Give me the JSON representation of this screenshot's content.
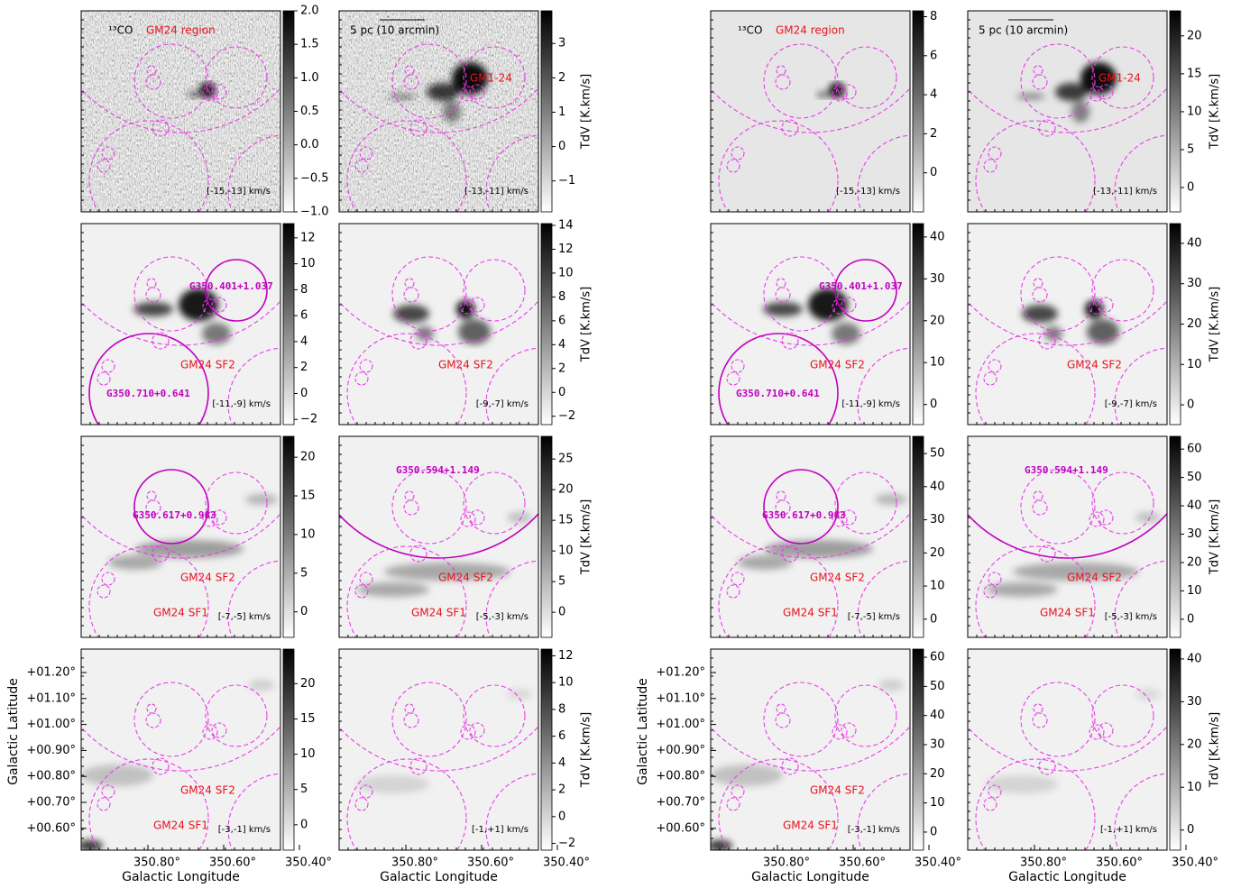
{
  "cbar_label": "TdV [K.km/s]",
  "x_axis_label": "Galactic Longitude",
  "y_axis_label": "Galactic Latitude",
  "x_ticks": [
    "350.80°",
    "350.60°",
    "350.40°"
  ],
  "y_ticks": [
    "+01.20°",
    "+01.10°",
    "+01.00°",
    "+00.90°",
    "+00.80°",
    "+00.70°",
    "+00.60°"
  ],
  "groups": [
    {
      "panels": [
        {
          "velocity": "[-15,-13] km/s",
          "annotations": {
            "co": "¹³CO",
            "region": "GM24 region"
          },
          "colorbar": {
            "lim": [
              -1.0,
              2.0
            ],
            "ticks": [
              {
                "value": -1.0,
                "label": "−1.0"
              },
              {
                "value": -0.5,
                "label": "−0.5"
              },
              {
                "value": 0,
                "label": "0.0"
              },
              0.5,
              {
                "value": 1,
                "label": "1.0"
              },
              1.5,
              {
                "value": 2,
                "label": "2.0"
              }
            ]
          }
        },
        {
          "velocity": "[-13,-11] km/s",
          "annotations": {
            "scale": "5 pc (10 arcmin)",
            "cloud": "GM1-24"
          },
          "colorbar": {
            "lim": [
              -1.9,
              3.95
            ],
            "ticks": [
              {
                "value": -1,
                "label": "−1"
              },
              0,
              1,
              2,
              3
            ]
          }
        },
        {
          "velocity": "[-11,-9] km/s",
          "annotations": {
            "src_top": "G350.401+1.037",
            "sf2": "GM24 SF2",
            "src_bottom": "G350.710+0.641"
          },
          "colorbar": {
            "lim": [
              -2.4,
              13.1
            ],
            "ticks": [
              {
                "value": -2,
                "label": "−2"
              },
              0,
              2,
              4,
              6,
              8,
              10,
              12
            ]
          }
        },
        {
          "velocity": "[-9,-7] km/s",
          "annotations": {
            "sf2": "GM24 SF2"
          },
          "colorbar": {
            "lim": [
              -2.7,
              14.15
            ],
            "ticks": [
              {
                "value": -2,
                "label": "−2"
              },
              0,
              2,
              4,
              6,
              8,
              10,
              12,
              14
            ]
          }
        },
        {
          "velocity": "[-7,-5] km/s",
          "annotations": {
            "src_mid": "G350.617+0.983",
            "sf2": "GM24 SF2",
            "sf1": "GM24 SF1"
          },
          "colorbar": {
            "lim": [
              -3.3,
              22.7
            ],
            "ticks": [
              0,
              5,
              10,
              15,
              20
            ]
          }
        },
        {
          "velocity": "[-5,-3] km/s",
          "annotations": {
            "src_big": "G350.594+1.149",
            "sf2": "GM24 SF2",
            "sf1": "GM24 SF1"
          },
          "colorbar": {
            "lim": [
              -4.1,
              28.7
            ],
            "ticks": [
              0,
              5,
              10,
              15,
              20,
              25
            ]
          }
        },
        {
          "velocity": "[-3,-1] km/s",
          "annotations": {
            "sf2": "GM24 SF2",
            "sf1": "GM24 SF1"
          },
          "colorbar": {
            "lim": [
              -3.6,
              24.9
            ],
            "ticks": [
              0,
              5,
              10,
              15,
              20
            ]
          }
        },
        {
          "velocity": "[-1,+1] km/s",
          "annotations": {},
          "colorbar": {
            "lim": [
              -2.5,
              12.5
            ],
            "ticks": [
              {
                "value": -2,
                "label": "−2"
              },
              0,
              2,
              4,
              6,
              8,
              10,
              12
            ]
          }
        }
      ]
    },
    {
      "panels": [
        {
          "velocity": "[-15,-13] km/s",
          "annotations": {
            "co": "¹³CO",
            "region": "GM24 region"
          },
          "colorbar": {
            "lim": [
              -2.0,
              8.3
            ],
            "ticks": [
              0,
              2,
              4,
              6,
              8
            ]
          }
        },
        {
          "velocity": "[-13,-11] km/s",
          "annotations": {
            "scale": "5 pc (10 arcmin)",
            "cloud": "GM1-24"
          },
          "colorbar": {
            "lim": [
              -3.2,
              23.3
            ],
            "ticks": [
              0,
              5,
              10,
              15,
              20
            ]
          }
        },
        {
          "velocity": "[-11,-9] km/s",
          "annotations": {
            "src_top": "G350.401+1.037",
            "sf2": "GM24 SF2",
            "src_bottom": "G350.710+0.641"
          },
          "colorbar": {
            "lim": [
              -4.8,
              43.2
            ],
            "ticks": [
              0,
              10,
              20,
              30,
              40
            ]
          }
        },
        {
          "velocity": "[-9,-7] km/s",
          "annotations": {
            "sf2": "GM24 SF2"
          },
          "colorbar": {
            "lim": [
              -4.9,
              44.9
            ],
            "ticks": [
              0,
              10,
              20,
              30,
              40
            ]
          }
        },
        {
          "velocity": "[-7,-5] km/s",
          "annotations": {
            "src_mid": "G350.617+0.983",
            "sf2": "GM24 SF2",
            "sf1": "GM24 SF1"
          },
          "colorbar": {
            "lim": [
              -5.5,
              55.2
            ],
            "ticks": [
              0,
              10,
              20,
              30,
              40,
              50
            ]
          }
        },
        {
          "velocity": "[-5,-3] km/s",
          "annotations": {
            "src_big": "G350.594+1.149",
            "sf2": "GM24 SF2",
            "sf1": "GM24 SF1"
          },
          "colorbar": {
            "lim": [
              -6.4,
              64.5
            ],
            "ticks": [
              0,
              10,
              20,
              30,
              40,
              50,
              60
            ]
          }
        },
        {
          "velocity": "[-3,-1] km/s",
          "annotations": {
            "sf2": "GM24 SF2",
            "sf1": "GM24 SF1"
          },
          "colorbar": {
            "lim": [
              -6.2,
              62.8
            ],
            "ticks": [
              0,
              10,
              20,
              30,
              40,
              50,
              60
            ]
          }
        },
        {
          "velocity": "[-1,+1] km/s",
          "annotations": {},
          "colorbar": {
            "lim": [
              -4.7,
              42.3
            ],
            "ticks": [
              0,
              10,
              20,
              30,
              40
            ]
          }
        }
      ]
    }
  ]
}
